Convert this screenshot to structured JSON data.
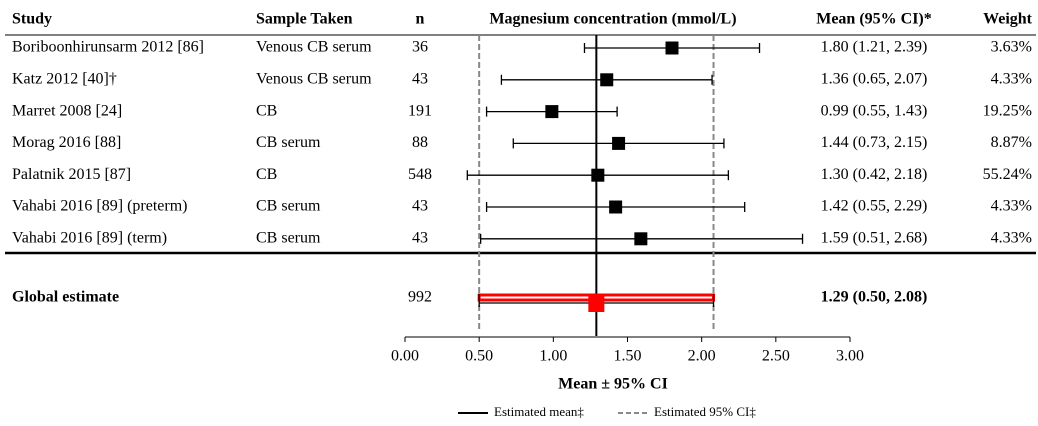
{
  "chart_data": {
    "type": "forest",
    "columns": [
      "Study",
      "Sample Taken",
      "n",
      "Magnesium concentration (mmol/L)",
      "Mean (95% CI)*",
      "Weight"
    ],
    "studies": [
      "Boriboonhirunsarm 2012 [86]",
      "Katz 2012 [40]†",
      "Marret 2008 [24]",
      "Morag 2016 [88]",
      "Palatnik 2015 [87]",
      "Vahabi 2016 [89] (preterm)",
      "Vahabi 2016 [89] (term)"
    ],
    "samples": [
      "Venous CB serum",
      "Venous CB serum",
      "CB",
      "CB serum",
      "CB",
      "CB serum",
      "CB serum"
    ],
    "n": [
      36,
      43,
      191,
      88,
      548,
      43,
      43
    ],
    "values": [
      1.8,
      1.36,
      0.99,
      1.44,
      1.3,
      1.42,
      1.59
    ],
    "lower": [
      1.21,
      0.65,
      0.55,
      0.73,
      0.42,
      0.55,
      0.51
    ],
    "upper": [
      2.39,
      2.07,
      1.43,
      2.15,
      2.18,
      2.29,
      2.68
    ],
    "value_labels": [
      "1.80 (1.21, 2.39)",
      "1.36 (0.65, 2.07)",
      "0.99 (0.55, 1.43)",
      "1.44 (0.73, 2.15)",
      "1.30 (0.42, 2.18)",
      "1.42 (0.55, 2.29)",
      "1.59 (0.51, 2.68)"
    ],
    "weights": [
      "3.63%",
      "4.33%",
      "19.25%",
      "8.87%",
      "55.24%",
      "4.33%",
      "4.33%"
    ],
    "color": "#000000",
    "pooled": {
      "label": "Global estimate",
      "n": 992,
      "value": 1.29,
      "lower": 0.5,
      "upper": 2.08,
      "value_label": "1.29 (0.50, 2.08)",
      "color": "#ff0000"
    },
    "xlim": [
      0,
      3
    ],
    "xticks": [
      {
        "value": 0,
        "label": "0.00"
      },
      {
        "value": 0.5,
        "label": "0.50"
      },
      {
        "value": 1,
        "label": "1.00"
      },
      {
        "value": 1.5,
        "label": "1.50"
      },
      {
        "value": 2,
        "label": "2.00"
      },
      {
        "value": 2.5,
        "label": "2.50"
      },
      {
        "value": 3,
        "label": "3.00"
      }
    ],
    "xlabel": "Mean ± 95% CI",
    "legend": [
      {
        "name": "Estimated mean‡",
        "style": "solid"
      },
      {
        "name": "Estimated 95% CI‡",
        "style": "dashed"
      }
    ]
  }
}
